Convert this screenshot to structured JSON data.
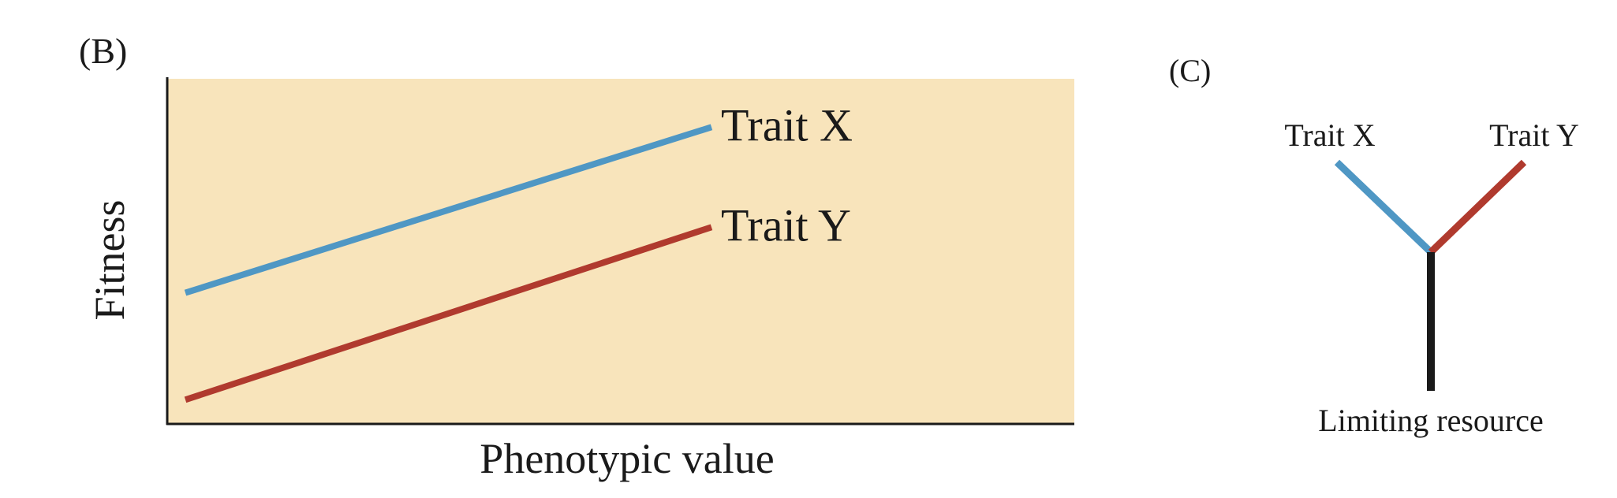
{
  "panel_b": {
    "label": "(B)",
    "xlabel": "Phenotypic value",
    "ylabel": "Fitness",
    "background_color": "#f8e4bb",
    "chart_data": {
      "type": "line",
      "xlabel": "Phenotypic value",
      "ylabel": "Fitness",
      "grid": false,
      "series": [
        {
          "name": "Trait X",
          "color": "#4f97c4",
          "x": [
            0.02,
            0.6
          ],
          "y": [
            0.38,
            0.86
          ]
        },
        {
          "name": "Trait Y",
          "color": "#b03a2e",
          "x": [
            0.02,
            0.6
          ],
          "y": [
            0.07,
            0.57
          ]
        }
      ]
    }
  },
  "panel_c": {
    "label": "(C)",
    "branch_left_label": "Trait X",
    "branch_right_label": "Trait Y",
    "stem_label": "Limiting resource",
    "branch_left_color": "#4f97c4",
    "branch_right_color": "#b03a2e",
    "stem_color": "#1a1a1a"
  }
}
